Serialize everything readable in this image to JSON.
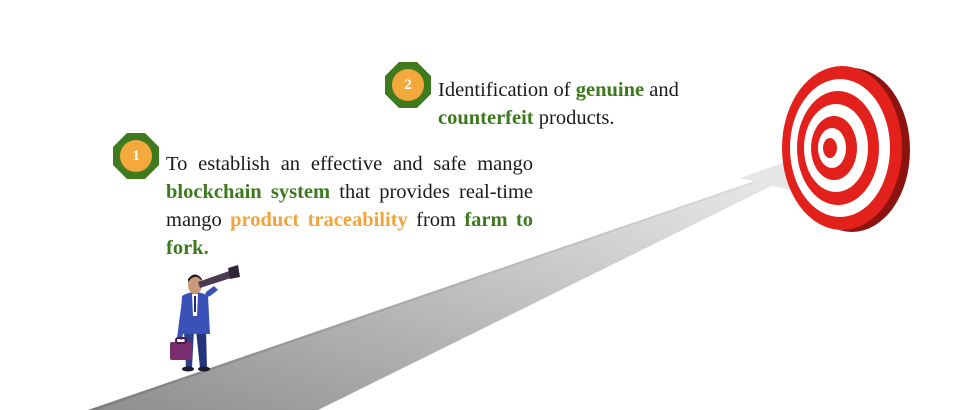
{
  "goals": [
    {
      "number": "1",
      "parts": {
        "t1": "To establish an effective and safe mango ",
        "h1": "blockchain system",
        "t2": " that provides real-time mango ",
        "h2": "product traceability",
        "t3": " from ",
        "h3": "farm to fork."
      }
    },
    {
      "number": "2",
      "parts": {
        "t1": "Identification of ",
        "h1": "genuine",
        "t2": " and ",
        "h2": "counterfeit",
        "t3": " products."
      }
    }
  ],
  "colors": {
    "highlight_green": "#3d7a1e",
    "highlight_orange": "#f2a33a",
    "badge_fill": "#f4a93c",
    "badge_ring": "#3f7a1f",
    "target_red": "#e3211c",
    "road_gray": "#a9a9a9"
  },
  "icons": [
    "target-icon",
    "businessman-with-telescope-icon",
    "road-arrow-icon"
  ]
}
